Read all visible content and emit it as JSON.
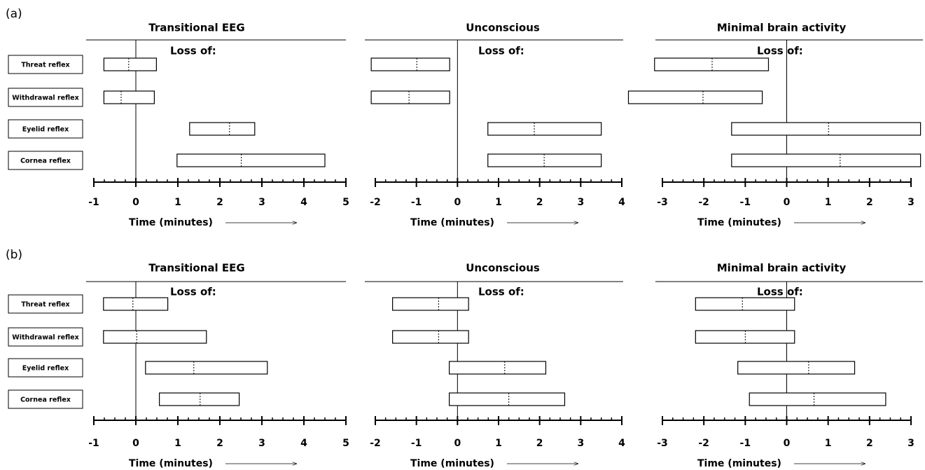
{
  "chart_data": [
    {
      "type": "range",
      "label": "(a)",
      "title": "Transitional EEG",
      "subtitle": "Loss of:",
      "xlabel": "Time (minutes)",
      "categories": [
        "Threat reflex",
        "Withdrawal reflex",
        "Eyelid reflex",
        "Cornea reflex"
      ],
      "start": [
        -0.76,
        -0.76,
        1.28,
        0.98
      ],
      "median": [
        -0.17,
        -0.35,
        2.23,
        2.51
      ],
      "end": [
        0.49,
        0.44,
        2.83,
        4.5
      ],
      "xlim": [
        -1,
        5
      ],
      "xticks": [
        -1,
        0,
        1,
        2,
        3,
        4,
        5
      ]
    },
    {
      "type": "range",
      "title": "Unconscious",
      "subtitle": "Loss of:",
      "xlabel": "Time (minutes)",
      "start": [
        -2.1,
        -2.1,
        0.74,
        0.74
      ],
      "median": [
        -0.99,
        -1.18,
        1.87,
        2.11
      ],
      "end": [
        -0.19,
        -0.19,
        3.5,
        3.5
      ],
      "xlim": [
        -2,
        4
      ],
      "xticks": [
        -2,
        -1,
        0,
        1,
        2,
        3,
        4
      ]
    },
    {
      "type": "range",
      "title": "Minimal brain activity",
      "subtitle": "Loss of:",
      "xlabel": "Time (minutes)",
      "start": [
        -3.19,
        -3.82,
        -1.33,
        -1.33
      ],
      "median": [
        -1.8,
        -2.02,
        1.01,
        1.29
      ],
      "end": [
        -0.44,
        -0.59,
        3.23,
        3.23
      ],
      "xlim": [
        -3,
        3
      ],
      "xticks": [
        -3,
        -2,
        -1,
        0,
        1,
        2,
        3
      ]
    },
    {
      "type": "range",
      "label": "(b)",
      "title": "Transitional EEG",
      "subtitle": "Loss of:",
      "xlabel": "Time (minutes)",
      "categories": [
        "Threat reflex",
        "Withdrawal reflex",
        "Eyelid reflex",
        "Cornea reflex"
      ],
      "start": [
        -0.77,
        -0.77,
        0.23,
        0.56
      ],
      "median": [
        -0.07,
        0.02,
        1.38,
        1.53
      ],
      "end": [
        0.76,
        1.68,
        3.13,
        2.46
      ],
      "xlim": [
        -1,
        5
      ],
      "xticks": [
        -1,
        0,
        1,
        2,
        3,
        4,
        5
      ]
    },
    {
      "type": "range",
      "title": "Unconscious",
      "subtitle": "Loss of:",
      "xlabel": "Time (minutes)",
      "start": [
        -1.58,
        -1.58,
        -0.2,
        -0.2
      ],
      "median": [
        -0.46,
        -0.46,
        1.15,
        1.25
      ],
      "end": [
        0.27,
        0.27,
        2.15,
        2.61
      ],
      "xlim": [
        -2,
        4
      ],
      "xticks": [
        -2,
        -1,
        0,
        1,
        2,
        3,
        4
      ]
    },
    {
      "type": "range",
      "title": "Minimal brain activity",
      "subtitle": "Loss of:",
      "xlabel": "Time (minutes)",
      "start": [
        -2.2,
        -2.2,
        -1.18,
        -0.9
      ],
      "median": [
        -1.07,
        -1.0,
        0.53,
        0.66
      ],
      "end": [
        0.19,
        0.19,
        1.64,
        2.39
      ],
      "xlim": [
        -3,
        3
      ],
      "xticks": [
        -3,
        -2,
        -1,
        0,
        1,
        2,
        3
      ]
    }
  ]
}
